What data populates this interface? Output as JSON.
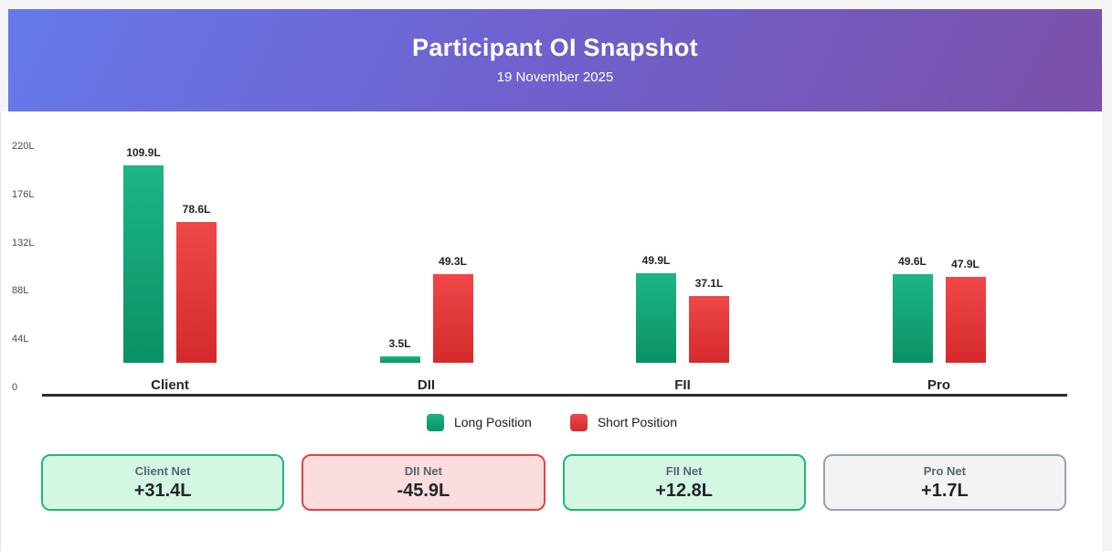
{
  "header": {
    "title": "Participant OI Snapshot",
    "date": "19 November 2025"
  },
  "chart_data": {
    "type": "bar",
    "categories": [
      "Client",
      "DII",
      "FII",
      "Pro"
    ],
    "series": [
      {
        "name": "Long Position",
        "values": [
          109.9,
          3.5,
          49.9,
          49.6
        ],
        "color_top": "#1db586",
        "color_bottom": "#0a9166",
        "legend_color": "#16a97a"
      },
      {
        "name": "Short Position",
        "values": [
          78.6,
          49.3,
          37.1,
          47.9
        ],
        "color_top": "#f04749",
        "color_bottom": "#d42a2c",
        "legend_color": "#e6３c3f"
      }
    ],
    "value_suffix": "L",
    "value_labels": [
      [
        "109.9L",
        "3.5L",
        "49.9L",
        "49.6L"
      ],
      [
        "78.6L",
        "49.3L",
        "37.1L",
        "47.9L"
      ]
    ],
    "y_ticks": [
      "220L",
      "176L",
      "132L",
      "88L",
      "44L",
      "0"
    ],
    "ylim": [
      0,
      220
    ],
    "grid": false,
    "legend_position": "bottom"
  },
  "cards": [
    {
      "label": "Client Net",
      "value": "+31.4L",
      "tone": "positive"
    },
    {
      "label": "DII Net",
      "value": "-45.9L",
      "tone": "negative"
    },
    {
      "label": "FII Net",
      "value": "+12.8L",
      "tone": "positive"
    },
    {
      "label": "Pro Net",
      "value": "+1.7L",
      "tone": "neutral"
    }
  ],
  "colors": {
    "header_gradient_start": "#6679e9",
    "header_gradient_end": "#7b50a9",
    "long_green": "#12a778",
    "short_red": "#e23b3e",
    "axis_line": "#2d2d2d",
    "card_tones": {
      "positive": {
        "bg": "#d4f7e4",
        "border": "#22b573"
      },
      "negative": {
        "bg": "#fbdddd",
        "border": "#e04345"
      },
      "neutral": {
        "bg": "#f1f3f5",
        "border": "#98a2ae"
      }
    }
  }
}
